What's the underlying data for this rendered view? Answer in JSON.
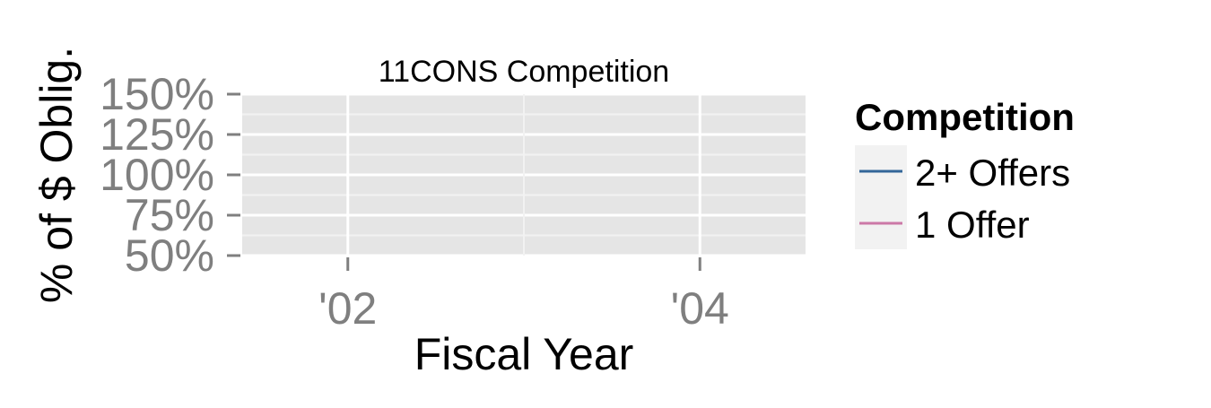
{
  "chart_data": {
    "type": "line",
    "title": "11CONS Competition",
    "xlabel": "Fiscal Year",
    "ylabel": "% of $ Oblig.",
    "x_ticks": [
      "'02",
      "'04"
    ],
    "x_tick_values": [
      2002,
      2004
    ],
    "xlim": [
      2001.4,
      2004.6
    ],
    "y_ticks": [
      "50%",
      "75%",
      "100%",
      "125%",
      "150%"
    ],
    "y_tick_values": [
      0.5,
      0.75,
      1.0,
      1.25,
      1.5
    ],
    "ylim": [
      0.5,
      1.5
    ],
    "grid": true,
    "legend": {
      "title": "Competition",
      "placement": "right"
    },
    "series": [
      {
        "name": "2+ Offers",
        "color": "#336699",
        "x": [],
        "y": []
      },
      {
        "name": "1 Offer",
        "color": "#cc79a7",
        "x": [],
        "y": []
      }
    ]
  }
}
